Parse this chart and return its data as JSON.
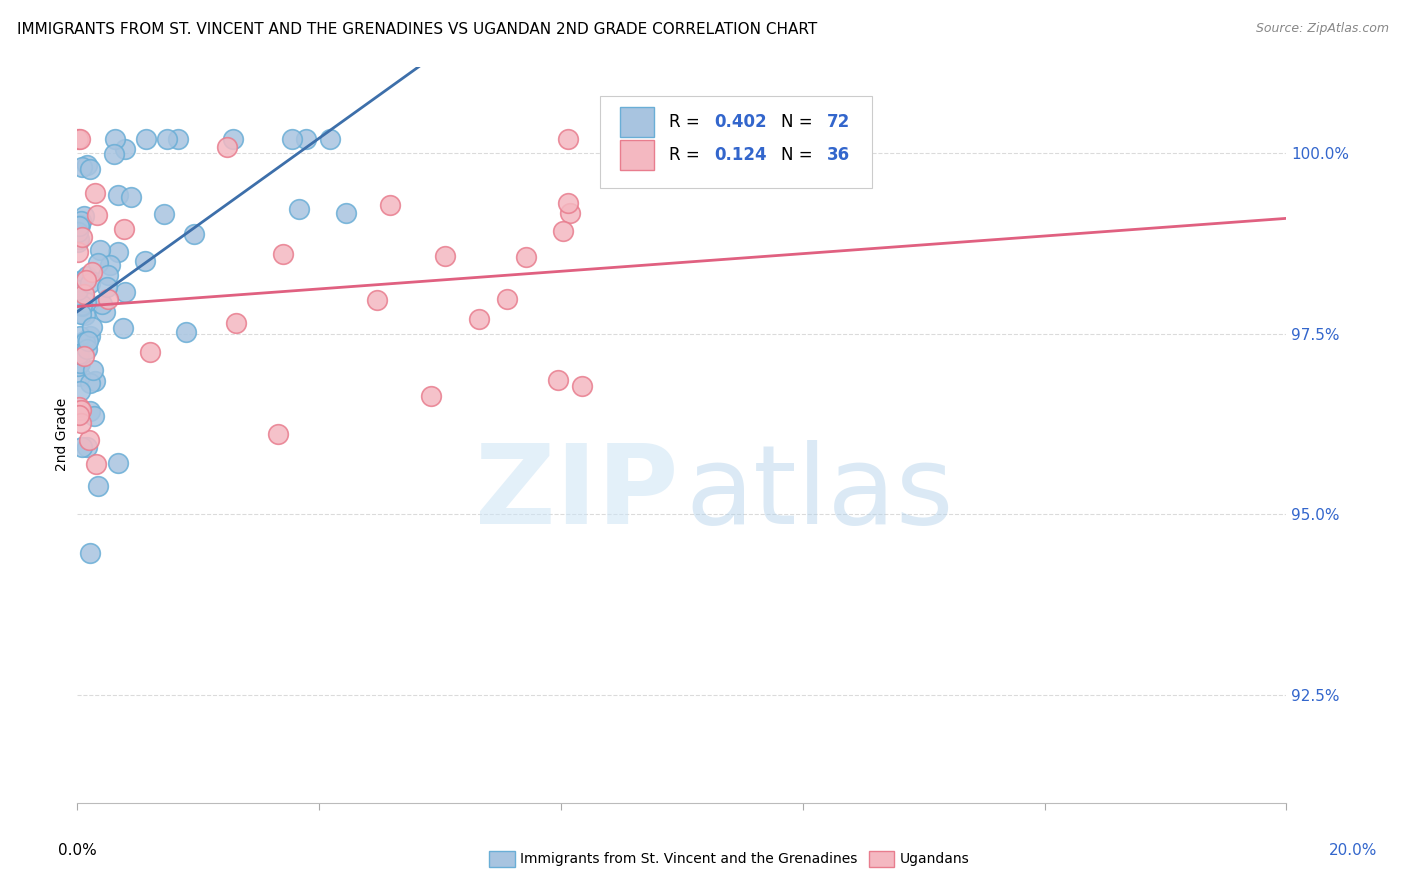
{
  "title": "IMMIGRANTS FROM ST. VINCENT AND THE GRENADINES VS UGANDAN 2ND GRADE CORRELATION CHART",
  "source": "Source: ZipAtlas.com",
  "ylabel": "2nd Grade",
  "yticks": [
    92.5,
    95.0,
    97.5,
    100.0
  ],
  "ytick_labels": [
    "92.5%",
    "95.0%",
    "97.5%",
    "100.0%"
  ],
  "xlim": [
    0.0,
    20.0
  ],
  "ylim": [
    91.0,
    101.2
  ],
  "blue_R": 0.402,
  "blue_N": 72,
  "pink_R": 0.124,
  "pink_N": 36,
  "blue_color": "#a8c4e0",
  "blue_edge": "#6aaed6",
  "pink_color": "#f4b8c1",
  "pink_edge": "#e87d8e",
  "blue_line_color": "#3d6faa",
  "pink_line_color": "#e06080",
  "legend_R_color": "#3366cc",
  "seed": 42
}
